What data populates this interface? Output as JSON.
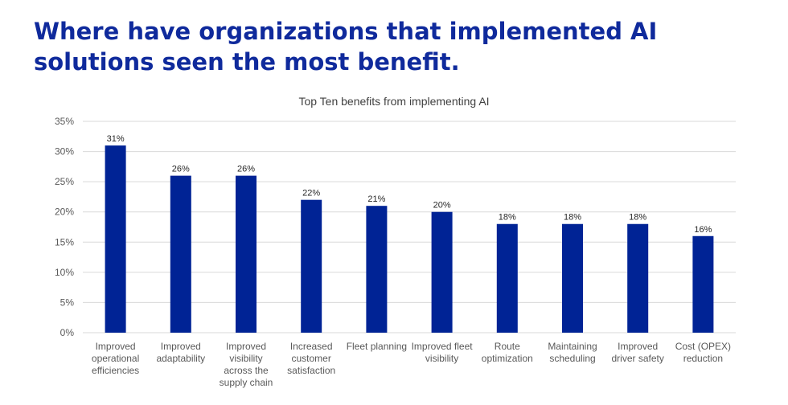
{
  "headline": "Where have organizations that implemented AI solutions seen the most benefit.",
  "chart_data": {
    "type": "bar",
    "title": "Top Ten benefits from implementing AI",
    "xlabel": "",
    "ylabel": "",
    "ylim": [
      0,
      35
    ],
    "yticks": [
      "0%",
      "5%",
      "10%",
      "15%",
      "20%",
      "25%",
      "30%",
      "35%"
    ],
    "grid": true,
    "bar_color": "#002395",
    "categories": [
      [
        "Improved",
        "operational",
        "efficiencies"
      ],
      [
        "Improved",
        "adaptability"
      ],
      [
        "Improved",
        "visibility",
        "across the",
        "supply chain"
      ],
      [
        "Increased",
        "customer",
        "satisfaction"
      ],
      [
        "Fleet planning"
      ],
      [
        "Improved fleet",
        "visibility"
      ],
      [
        "Route",
        "optimization"
      ],
      [
        "Maintaining",
        "scheduling"
      ],
      [
        "Improved",
        "driver safety"
      ],
      [
        "Cost (OPEX)",
        "reduction"
      ]
    ],
    "values": [
      31,
      26,
      26,
      22,
      21,
      20,
      18,
      18,
      18,
      16
    ],
    "data_labels": [
      "31%",
      "26%",
      "26%",
      "22%",
      "21%",
      "20%",
      "18%",
      "18%",
      "18%",
      "16%"
    ]
  }
}
